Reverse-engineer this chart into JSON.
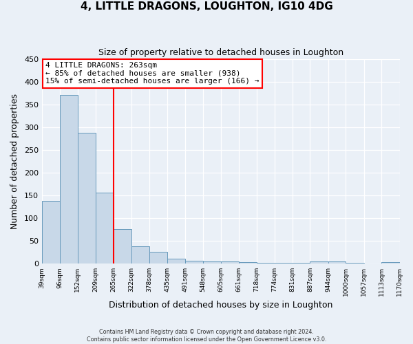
{
  "title": "4, LITTLE DRAGONS, LOUGHTON, IG10 4DG",
  "subtitle": "Size of property relative to detached houses in Loughton",
  "xlabel": "Distribution of detached houses by size in Loughton",
  "ylabel": "Number of detached properties",
  "bin_edges": [
    39,
    96,
    152,
    209,
    265,
    322,
    378,
    435,
    491,
    548,
    605,
    661,
    718,
    774,
    831,
    887,
    944,
    1000,
    1057,
    1113,
    1170
  ],
  "bin_labels": [
    "39sqm",
    "96sqm",
    "152sqm",
    "209sqm",
    "265sqm",
    "322sqm",
    "378sqm",
    "435sqm",
    "491sqm",
    "548sqm",
    "605sqm",
    "661sqm",
    "718sqm",
    "774sqm",
    "831sqm",
    "887sqm",
    "944sqm",
    "1000sqm",
    "1057sqm",
    "1113sqm",
    "1170sqm"
  ],
  "counts": [
    137,
    370,
    288,
    156,
    75,
    38,
    26,
    10,
    6,
    5,
    5,
    3,
    2,
    1,
    1,
    4,
    4,
    1,
    0,
    3
  ],
  "bar_color": "#c8d8e8",
  "bar_edge_color": "#6699bb",
  "vline_color": "red",
  "vline_x": 265,
  "annotation_title": "4 LITTLE DRAGONS: 263sqm",
  "annotation_line1": "← 85% of detached houses are smaller (938)",
  "annotation_line2": "15% of semi-detached houses are larger (166) →",
  "annotation_box_color": "white",
  "annotation_box_edge_color": "red",
  "ylim": [
    0,
    450
  ],
  "yticks": [
    0,
    50,
    100,
    150,
    200,
    250,
    300,
    350,
    400,
    450
  ],
  "footer1": "Contains HM Land Registry data © Crown copyright and database right 2024.",
  "footer2": "Contains public sector information licensed under the Open Government Licence v3.0.",
  "bg_color": "#eaf0f7",
  "plot_bg_color": "#eaf0f7"
}
